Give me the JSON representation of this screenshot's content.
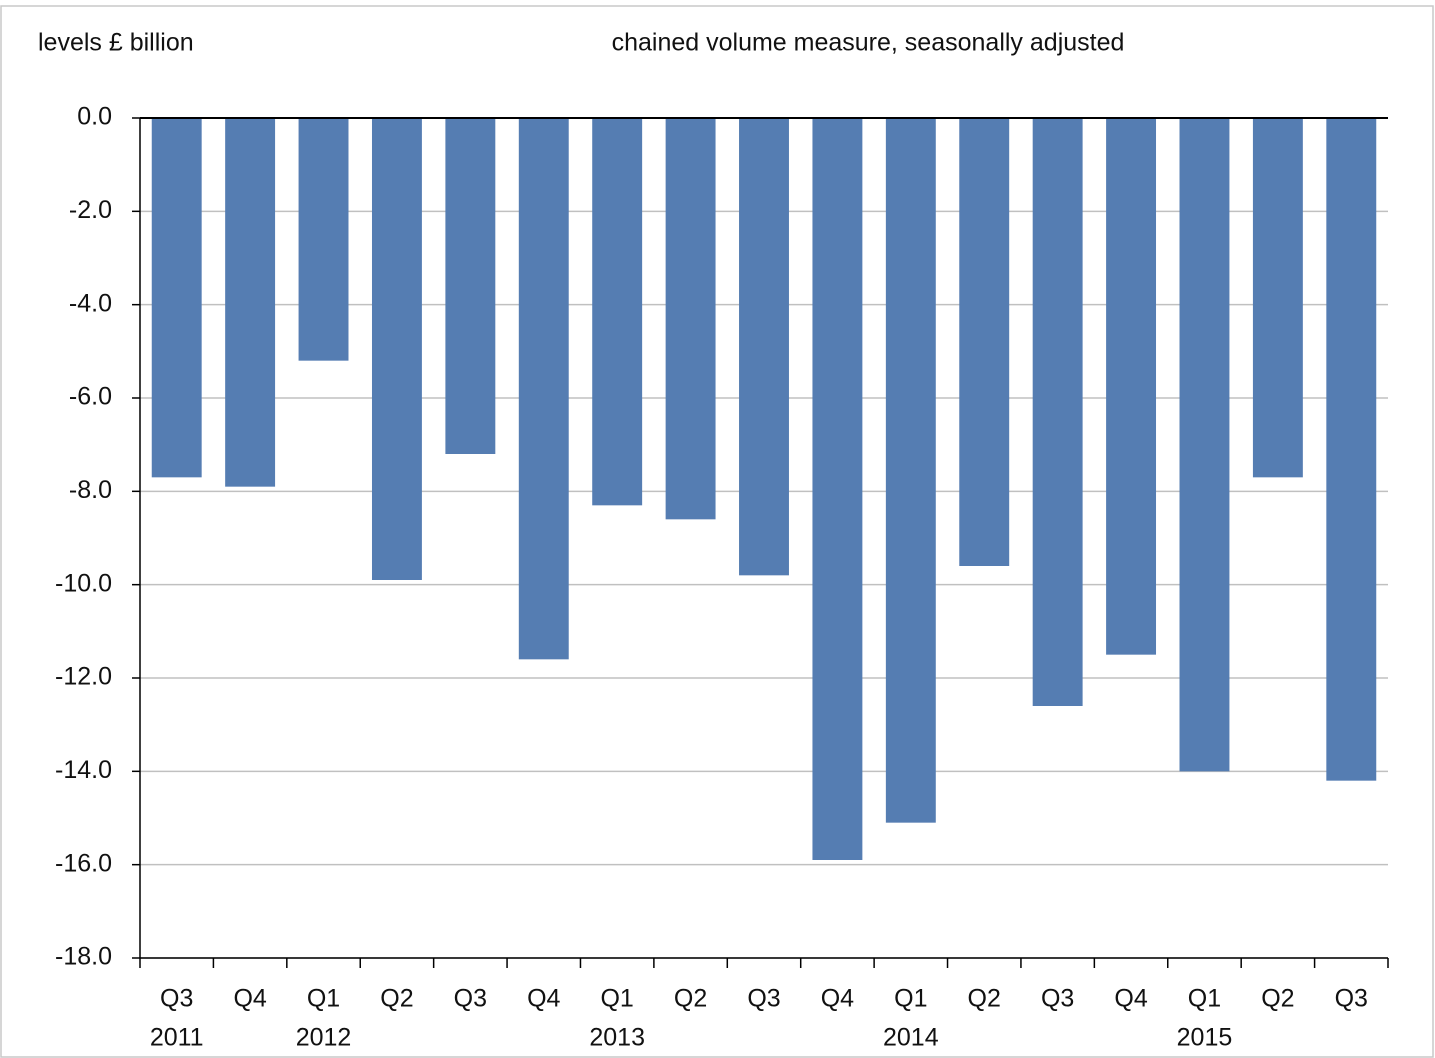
{
  "chart_data": {
    "type": "bar",
    "y_label": "levels £ billion",
    "subtitle": "chained volume measure, seasonally adjusted",
    "categories": [
      "Q3",
      "Q4",
      "Q1",
      "Q2",
      "Q3",
      "Q4",
      "Q1",
      "Q2",
      "Q3",
      "Q4",
      "Q1",
      "Q2",
      "Q3",
      "Q4",
      "Q1",
      "Q2",
      "Q3"
    ],
    "category_years": [
      "2011",
      null,
      "2012",
      null,
      null,
      null,
      "2013",
      null,
      null,
      null,
      "2014",
      null,
      null,
      null,
      "2015",
      null,
      null
    ],
    "values": [
      -7.7,
      -7.9,
      -5.2,
      -9.9,
      -7.2,
      -11.6,
      -8.3,
      -8.6,
      -9.8,
      -15.9,
      -15.1,
      -9.6,
      -12.6,
      -11.5,
      -14.0,
      -7.7,
      -14.2
    ],
    "color": "#557db2",
    "ylim": [
      -18,
      0
    ],
    "yticks": [
      {
        "value": 0,
        "label": "0.0"
      },
      {
        "value": -2,
        "label": "-2.0"
      },
      {
        "value": -4,
        "label": "-4.0"
      },
      {
        "value": -6,
        "label": "-6.0"
      },
      {
        "value": -8,
        "label": "-8.0"
      },
      {
        "value": -10,
        "label": "-10.0"
      },
      {
        "value": -12,
        "label": "-12.0"
      },
      {
        "value": -14,
        "label": "-14.0"
      },
      {
        "value": -16,
        "label": "-16.0"
      },
      {
        "value": -18,
        "label": "-18.0"
      }
    ],
    "grid": true
  }
}
